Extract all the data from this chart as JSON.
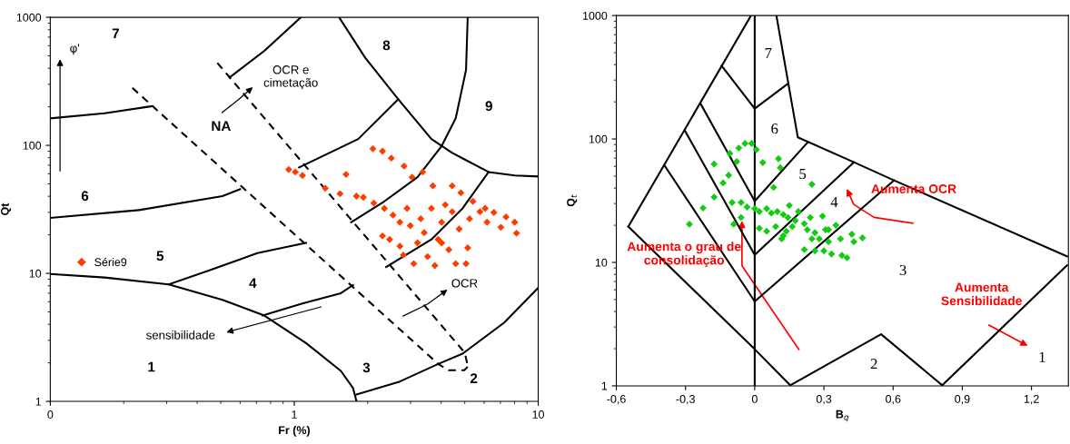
{
  "chart_data": [
    {
      "type": "scatter",
      "xlabel": "Fr (%)",
      "ylabel": "Qt",
      "log": "xy",
      "xlim": [
        0.1,
        10
      ],
      "ylim": [
        1,
        1000
      ],
      "xticks": [
        {
          "value": 0.1,
          "label": "0"
        },
        1,
        10
      ],
      "yticks": [
        1,
        10,
        100,
        1000
      ],
      "grid": false,
      "legend": "left",
      "series": [
        {
          "type": "line",
          "color": "#000000",
          "line_style": "solid",
          "x": [
            0.1,
            0.167,
            0.26
          ],
          "values": [
            162.5,
            178,
            202
          ]
        },
        {
          "type": "line",
          "color": "#000000",
          "line_style": "solid",
          "x": [
            0.1,
            0.231,
            0.508,
            0.6
          ],
          "values": [
            27.1,
            31.2,
            40.1,
            45.4
          ]
        },
        {
          "type": "line",
          "color": "#000000",
          "line_style": "solid",
          "x": [
            0.1,
            0.167,
            0.306,
            0.508,
            0.754,
            1.118,
            1.552,
            1.742,
            1.8
          ],
          "values": [
            9.88,
            9.28,
            8.2,
            6.2,
            4.68,
            2.85,
            1.73,
            1.27,
            1
          ]
        },
        {
          "type": "line",
          "color": "#000000",
          "line_style": "solid",
          "x": [
            0.306,
            0.446,
            0.706,
            1.118
          ],
          "values": [
            8.2,
            10.5,
            14.4,
            17.3
          ]
        },
        {
          "type": "line",
          "color": "#000000",
          "line_style": "solid",
          "x": [
            0.742,
            1.08,
            1.552,
            1.742
          ],
          "values": [
            4.68,
            5.82,
            7.0,
            8.1
          ]
        },
        {
          "type": "line",
          "color": "#000000",
          "line_style": "solid",
          "x": [
            1.8,
            2.71,
            3.89,
            4.9,
            7.26,
            10
          ],
          "values": [
            1.13,
            1.43,
            1.96,
            2.36,
            4.13,
            7.7
          ]
        },
        {
          "type": "line",
          "color": "#000000",
          "line_style": "solid",
          "x": [
            0.543,
            0.754,
            1.064
          ],
          "values": [
            339,
            547,
            1000
          ]
        },
        {
          "type": "line",
          "color": "#000000",
          "line_style": "solid",
          "x": [
            1.047,
            1.829,
            2.67
          ],
          "values": [
            67.2,
            112,
            229
          ]
        },
        {
          "type": "line",
          "color": "#000000",
          "line_style": "solid",
          "x": [
            1.527,
            1.954,
            2.67,
            3.65,
            4.44,
            6.26,
            8.01,
            10
          ],
          "values": [
            1000,
            483,
            229,
            112,
            87.3,
            61.9,
            58.2,
            57.1
          ]
        },
        {
          "type": "line",
          "color": "#000000",
          "line_style": "solid",
          "x": [
            5.14,
            5.06,
            4.59,
            4.02,
            3.2,
            2.34,
            1.71
          ],
          "values": [
            1000,
            388,
            162.5,
            98.8,
            56.4,
            36.5,
            25.1
          ]
        },
        {
          "type": "line",
          "color": "#000000",
          "line_style": "solid",
          "x": [
            6.26,
            4.9,
            3.65,
            2.38
          ],
          "values": [
            61.9,
            32.2,
            18.4,
            11.2
          ]
        },
        {
          "type": "line",
          "color": "#000000",
          "line_style": "dashed",
          "x": [
            0.217,
            3.89,
            4.3,
            4.98,
            5.15
          ],
          "values": [
            281,
            1.96,
            1.75,
            1.75,
            1.87
          ]
        },
        {
          "type": "line",
          "color": "#000000",
          "line_style": "dashed",
          "x": [
            0.484,
            5.0,
            5.15
          ],
          "values": [
            440,
            2.4,
            1.87
          ]
        },
        {
          "name": "Série9",
          "color": "#ff3c00",
          "marker": "diamond",
          "x": [
            0.949,
            1.01,
            1.08,
            1.34,
            1.54,
            1.63,
            1.8,
            1.92,
            2.12,
            2.1,
            2.3,
            2.5,
            2.82,
            3.04,
            3.36,
            3.7,
            4.44,
            4.82,
            5.4,
            6.06,
            6.58,
            7.38,
            8.01,
            8.15,
            7.03,
            2.34,
            2.3,
            2.46,
            2.71,
            2.8,
            2.99,
            3.2,
            3.3,
            3.52,
            3.77,
            3.89,
            4.02,
            4.3,
            4.44,
            4.74,
            5.14,
            5.06,
            4.59,
            5.23,
            5.77,
            6.17,
            2.71,
            3.41,
            3.65,
            2.54,
            2.9,
            4.16,
            3.09,
            4.02
          ],
          "values": [
            64.7,
            61.9,
            58.2,
            46.2,
            41.9,
            59.3,
            40.1,
            39.3,
            35.4,
            94,
            90,
            79.4,
            68.9,
            56.4,
            61.9,
            48.3,
            48.3,
            42.6,
            36.5,
            32.2,
            29.9,
            27.6,
            25.1,
            20.6,
            22.9,
            32.2,
            19.6,
            18.4,
            16.3,
            13.9,
            23.6,
            17.3,
            26.7,
            13.5,
            11.5,
            18.4,
            25.1,
            15.3,
            30.3,
            22.2,
            15.8,
            11.9,
            11.9,
            26.7,
            30.3,
            25.1,
            25.1,
            20.8,
            32.2,
            28.5,
            32.2,
            34.3,
            11.9,
            17.3
          ]
        }
      ],
      "annotations": [
        "7",
        "8",
        "9",
        "NA",
        "6",
        "5",
        "4",
        "1",
        "3",
        "2",
        "φ'",
        "OCR e\ncimetação",
        "OCR",
        "sensibilidade"
      ]
    },
    {
      "type": "scatter",
      "xlabel": "B$_{q}$",
      "ylabel": "Q$_{t}$",
      "log": "y",
      "xlim": [
        -0.6,
        1.36
      ],
      "ylim": [
        1,
        1000
      ],
      "xticks": [
        {
          "value": -0.6,
          "label": "-0,6"
        },
        {
          "value": -0.3,
          "label": "-0,3"
        },
        0,
        {
          "value": 0.3,
          "label": "0,3"
        },
        {
          "value": 0.6,
          "label": "0,6"
        },
        {
          "value": 0.9,
          "label": "0,9"
        },
        {
          "value": 1.2,
          "label": "1,2"
        }
      ],
      "yticks": [
        1,
        10,
        100,
        1000
      ],
      "grid": false,
      "ref_lines": [
        {
          "axis": "x",
          "value": 0,
          "color": "#000000"
        }
      ],
      "series": [
        {
          "type": "line",
          "color": "#000000",
          "line_style": "solid",
          "x": [
            -0.548,
            -0.016
          ],
          "values": [
            19.5,
            1000
          ]
        },
        {
          "type": "line",
          "color": "#000000",
          "line_style": "solid",
          "x": [
            -0.548,
            0,
            0.154,
            0.548,
            0.813,
            1.354
          ],
          "values": [
            19.5,
            1.98,
            1.01,
            2.62,
            1.01,
            9.45
          ]
        },
        {
          "type": "line",
          "color": "#000000",
          "line_style": "solid",
          "x": [
            0.094,
            0.187,
            0.43,
            0.604,
            1.354
          ],
          "values": [
            1000,
            103,
            64.8,
            46.2,
            11.2
          ]
        },
        {
          "type": "line",
          "color": "#000000",
          "line_style": "solid",
          "x": [
            -0.1435,
            0,
            0.145
          ],
          "values": [
            392,
            176,
            281
          ]
        },
        {
          "type": "line",
          "color": "#000000",
          "line_style": "solid",
          "x": [
            -0.235,
            0,
            0.231
          ],
          "values": [
            193.5,
            31.4,
            94.5
          ]
        },
        {
          "type": "line",
          "color": "#000000",
          "line_style": "solid",
          "x": [
            -0.303,
            0,
            0.43
          ],
          "values": [
            117,
            11.5,
            64.8
          ]
        },
        {
          "type": "line",
          "color": "#000000",
          "line_style": "solid",
          "x": [
            -0.391,
            0,
            0.604
          ],
          "values": [
            60.9,
            4.83,
            46.2
          ]
        },
        {
          "color": "#11cc11",
          "marker": "diamond",
          "x": [
            -0.283,
            -0.224,
            -0.176,
            -0.176,
            -0.137,
            -0.113,
            -0.108,
            -0.078,
            -0.069,
            -0.042,
            -0.013,
            0.007,
            0.035,
            0.103,
            0.111,
            0.082,
            0.248,
            -0.098,
            -0.059,
            -0.033,
            -0.091,
            -0.059,
            0,
            0.02,
            0.052,
            0.072,
            0.098,
            0.124,
            0.15,
            0.144,
            0.176,
            0.189,
            0.163,
            0.215,
            0.228,
            0.241,
            0.261,
            0.28,
            0.294,
            0.307,
            0.32,
            0.333,
            0.352,
            0.372,
            0.378,
            0.4,
            0.421,
            0.43,
            0.467,
            0.261,
            0.215,
            0.124,
            0.052,
            0.02,
            0.091,
            0.137,
            0.117,
            0.248,
            0.3,
            0.32
          ],
          "values": [
            20.4,
            27.6,
            62.6,
            33.8,
            44.1,
            50.8,
            76.3,
            65.5,
            84.4,
            91.9,
            91.9,
            82.0,
            64.4,
            69.3,
            58.5,
            40.5,
            42.9,
            30.6,
            30.6,
            28.1,
            20.4,
            23.1,
            27.3,
            25.8,
            27.3,
            25.1,
            25.8,
            24.4,
            28.9,
            23.1,
            21.8,
            25.8,
            19.5,
            20.6,
            18.4,
            23.1,
            17.4,
            15.5,
            23.7,
            18.4,
            14.7,
            11.7,
            20.0,
            15.5,
            11.4,
            10.9,
            16.9,
            14.7,
            15.8,
            12.4,
            12.7,
            16.4,
            17.9,
            18.9,
            19.5,
            17.9,
            15.5,
            15.5,
            12.4,
            18.4
          ]
        }
      ],
      "annotations": [
        "7",
        "6",
        "5",
        "4",
        "3",
        "2",
        "1",
        "Aumenta OCR",
        "Aumenta o grau de\nconsolidação",
        "Aumenta\nSensibilidade"
      ]
    }
  ]
}
